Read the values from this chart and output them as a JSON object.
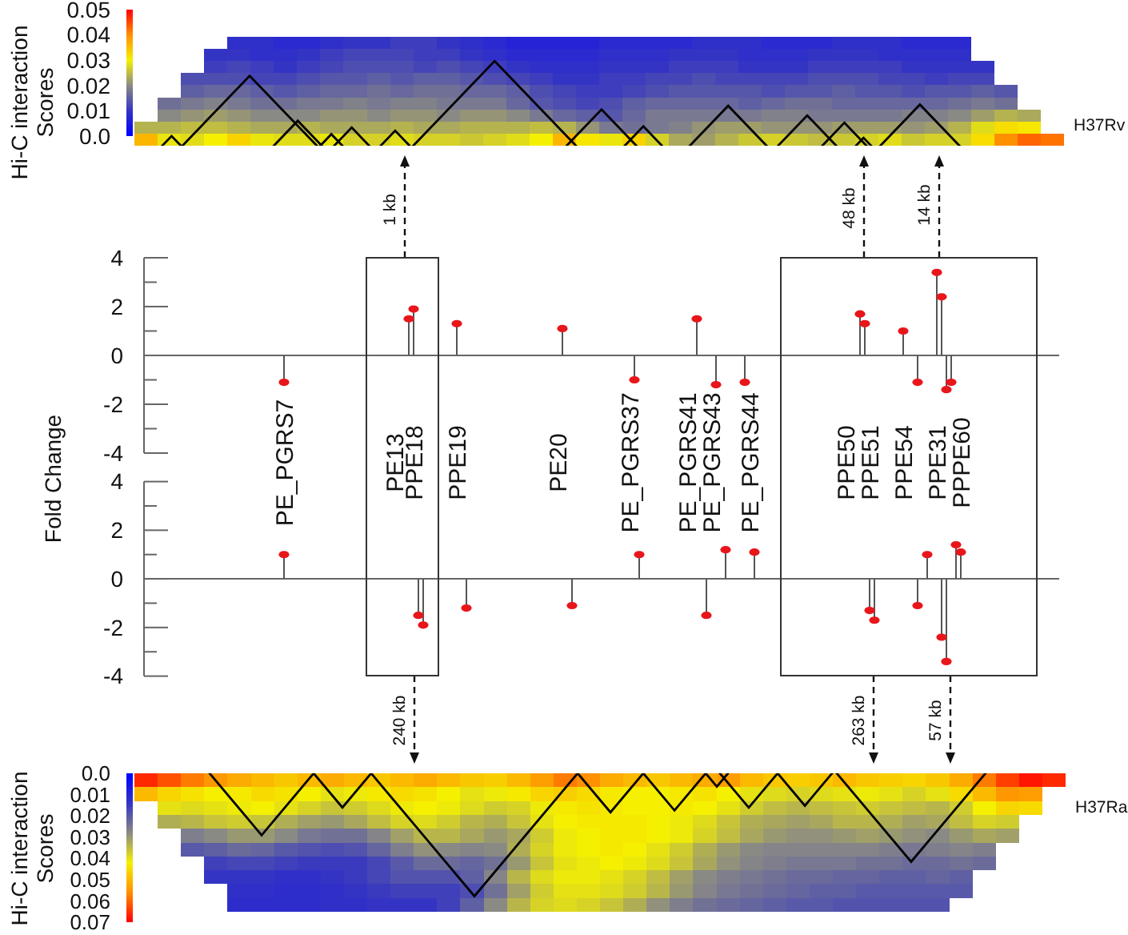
{
  "chart_data": [
    {
      "type": "heatmap",
      "clabel": "Hi-C interaction Scores",
      "clim": [
        0,
        0.05
      ],
      "cticks": [
        {
          "value": 0,
          "label": "0.0"
        },
        0.01,
        0.02,
        0.03,
        0.04,
        0.05
      ],
      "annotations": [
        "H37Rv"
      ],
      "categories": [
        null,
        null,
        null,
        null,
        null,
        null,
        null,
        null,
        null,
        null,
        null,
        null,
        null,
        null,
        null,
        null,
        null,
        null,
        null,
        null,
        null,
        null,
        null,
        null,
        null,
        null,
        null,
        null,
        null,
        null,
        null,
        null,
        null,
        null,
        null,
        null,
        null,
        null,
        null,
        null
      ],
      "y_categories": [
        null,
        null,
        null,
        null,
        null,
        null,
        null,
        null,
        null
      ],
      "cells": [
        [
          null,
          null,
          null,
          null,
          0.009,
          0.009,
          0.008,
          0.008,
          0.009,
          0.01,
          0.01,
          0.011,
          0.011,
          0.01,
          0.009,
          0.008,
          0.007,
          0.007,
          0.007,
          0.007,
          0.008,
          0.008,
          0.008,
          0.008,
          0.009,
          0.009,
          0.009,
          0.008,
          0.008,
          0.008,
          0.009,
          0.009,
          0.009,
          0.008,
          0.008,
          0.008,
          null,
          null,
          null,
          null
        ],
        [
          null,
          null,
          null,
          0.01,
          0.01,
          0.009,
          0.009,
          0.01,
          0.011,
          0.012,
          0.012,
          0.012,
          0.011,
          0.011,
          0.01,
          0.009,
          0.008,
          0.008,
          0.008,
          0.008,
          0.009,
          0.009,
          0.009,
          0.01,
          0.01,
          0.01,
          0.009,
          0.009,
          0.009,
          0.01,
          0.01,
          0.01,
          0.009,
          0.009,
          0.009,
          0.009,
          null,
          null,
          null,
          null
        ],
        [
          null,
          null,
          null,
          0.011,
          0.012,
          0.011,
          0.01,
          0.011,
          0.012,
          0.013,
          0.013,
          0.013,
          0.012,
          0.013,
          0.012,
          0.011,
          0.01,
          0.009,
          0.009,
          0.009,
          0.01,
          0.01,
          0.01,
          0.011,
          0.011,
          0.011,
          0.01,
          0.01,
          0.01,
          0.011,
          0.011,
          0.011,
          0.011,
          0.01,
          0.01,
          0.01,
          0.01,
          null,
          null,
          null
        ],
        [
          null,
          null,
          0.013,
          0.013,
          0.013,
          0.012,
          0.012,
          0.013,
          0.014,
          0.014,
          0.015,
          0.014,
          0.015,
          0.015,
          0.014,
          0.013,
          0.012,
          0.011,
          0.01,
          0.01,
          0.011,
          0.011,
          0.012,
          0.012,
          0.013,
          0.012,
          0.012,
          0.012,
          0.012,
          0.013,
          0.013,
          0.013,
          0.012,
          0.012,
          0.011,
          0.012,
          0.012,
          null,
          null,
          null
        ],
        [
          null,
          null,
          0.015,
          0.016,
          0.016,
          0.015,
          0.014,
          0.015,
          0.016,
          0.016,
          0.017,
          0.016,
          0.017,
          0.017,
          0.016,
          0.016,
          0.015,
          0.013,
          0.012,
          0.011,
          0.011,
          0.012,
          0.013,
          0.014,
          0.014,
          0.014,
          0.014,
          0.013,
          0.014,
          0.014,
          0.015,
          0.014,
          0.014,
          0.013,
          0.014,
          0.014,
          0.015,
          0.014,
          null,
          null
        ],
        [
          null,
          0.017,
          0.018,
          0.019,
          0.018,
          0.017,
          0.017,
          0.018,
          0.018,
          0.019,
          0.018,
          0.019,
          0.019,
          0.018,
          0.018,
          0.018,
          0.016,
          0.014,
          0.013,
          0.012,
          0.013,
          0.015,
          0.016,
          0.016,
          0.016,
          0.016,
          0.015,
          0.016,
          0.017,
          0.017,
          0.016,
          0.016,
          0.016,
          0.016,
          0.016,
          0.017,
          0.018,
          0.017,
          null,
          null
        ],
        [
          null,
          0.02,
          0.021,
          0.022,
          0.021,
          0.02,
          0.02,
          0.02,
          0.021,
          0.021,
          0.02,
          0.021,
          0.021,
          0.02,
          0.021,
          0.021,
          0.02,
          0.018,
          0.016,
          0.015,
          0.014,
          0.016,
          0.018,
          0.018,
          0.018,
          0.018,
          0.018,
          0.019,
          0.019,
          0.018,
          0.018,
          0.018,
          0.018,
          0.019,
          0.019,
          0.02,
          0.022,
          0.024,
          0.023,
          null
        ],
        [
          0.024,
          0.024,
          0.025,
          0.025,
          0.024,
          0.023,
          0.023,
          0.024,
          0.023,
          0.023,
          0.023,
          0.024,
          0.023,
          0.023,
          0.024,
          0.024,
          0.024,
          0.025,
          0.024,
          0.021,
          0.018,
          0.017,
          0.018,
          0.019,
          0.021,
          0.022,
          0.022,
          0.021,
          0.021,
          0.021,
          0.022,
          0.022,
          0.022,
          0.021,
          0.022,
          0.024,
          0.028,
          0.032,
          0.031,
          null
        ],
        [
          0.036,
          0.029,
          0.028,
          0.03,
          0.033,
          0.029,
          0.028,
          0.028,
          0.029,
          0.027,
          0.027,
          0.028,
          0.027,
          0.027,
          0.026,
          0.027,
          0.028,
          0.03,
          0.036,
          0.031,
          0.029,
          0.033,
          0.027,
          0.023,
          0.022,
          0.024,
          0.026,
          0.027,
          0.026,
          0.025,
          0.026,
          0.027,
          0.028,
          0.026,
          0.027,
          0.027,
          0.032,
          0.04,
          0.043,
          0.042
        ]
      ]
    },
    {
      "type": "lollipop",
      "ylabel": "Fold Change",
      "color": "#e8161b",
      "ylim": [
        -4,
        4
      ],
      "yticks": [
        -4,
        {
          "value": -3,
          "label": null
        },
        -2,
        {
          "value": -1,
          "label": null
        },
        0,
        {
          "value": 1,
          "label": null
        },
        2,
        {
          "value": 3,
          "label": null
        },
        4
      ],
      "annotations": [
        "1 kb",
        "48 kb",
        "14 kb"
      ],
      "categories": [
        null,
        null,
        null,
        null,
        null,
        null,
        null,
        null,
        null,
        null,
        null,
        null,
        null,
        null,
        null,
        null,
        null,
        null,
        null,
        null,
        null,
        null,
        null,
        null,
        null,
        null,
        null,
        null,
        "PE_PGRS7",
        null,
        null,
        null,
        null,
        null,
        null,
        null,
        null,
        null,
        null,
        null,
        null,
        null,
        null,
        null,
        null,
        null,
        null,
        null,
        null,
        null,
        null,
        "PE13",
        null,
        null,
        null,
        "PPE18",
        null,
        null,
        null,
        null,
        null,
        null,
        null,
        null,
        "PPE19",
        null,
        null,
        null,
        null,
        null,
        null,
        null,
        null,
        null,
        null,
        null,
        null,
        null,
        null,
        null,
        null,
        null,
        null,
        null,
        null,
        "PE20",
        null,
        null,
        null,
        null,
        null,
        null,
        null,
        null,
        null,
        null,
        null,
        null,
        null,
        null,
        "PE_PGRS37",
        null,
        null,
        null,
        null,
        null,
        null,
        null,
        null,
        null,
        null,
        null,
        "PE_PGRS41",
        null,
        null,
        null,
        null,
        "PE_PGRS43",
        null,
        null,
        null,
        null,
        null,
        null,
        null,
        "PE_PGRS44",
        null,
        null,
        null,
        null,
        null,
        null,
        null,
        null,
        null,
        null,
        null,
        null,
        null,
        null,
        null,
        null,
        null,
        null,
        null,
        "PPE50",
        null,
        null,
        null,
        null,
        "PPE51",
        null,
        null,
        null,
        null,
        null,
        null,
        "PPE54",
        null,
        null,
        null,
        null,
        null,
        null,
        "PPE31",
        null,
        null,
        null,
        null,
        "PPPE60",
        null,
        null,
        null,
        null,
        null,
        null,
        null,
        null,
        null,
        null,
        null,
        null,
        null,
        null,
        null,
        null,
        null,
        null,
        null,
        null
      ],
      "values": [
        null,
        null,
        null,
        null,
        null,
        null,
        null,
        null,
        null,
        null,
        null,
        null,
        null,
        null,
        null,
        null,
        null,
        null,
        null,
        null,
        null,
        null,
        null,
        null,
        null,
        null,
        null,
        null,
        -1.1,
        null,
        null,
        null,
        null,
        null,
        null,
        null,
        null,
        null,
        null,
        null,
        null,
        null,
        null,
        null,
        null,
        null,
        null,
        null,
        null,
        null,
        null,
        null,
        null,
        null,
        1.5,
        1.9,
        null,
        null,
        null,
        null,
        null,
        null,
        null,
        null,
        1.3,
        null,
        null,
        null,
        null,
        null,
        null,
        null,
        null,
        null,
        null,
        null,
        null,
        null,
        null,
        null,
        null,
        null,
        null,
        null,
        null,
        null,
        1.1,
        null,
        null,
        null,
        null,
        null,
        null,
        null,
        null,
        null,
        null,
        null,
        null,
        null,
        null,
        -1.0,
        null,
        null,
        null,
        null,
        null,
        null,
        null,
        null,
        null,
        null,
        null,
        null,
        1.5,
        null,
        null,
        null,
        -1.2,
        null,
        null,
        null,
        null,
        null,
        -1.1,
        null,
        null,
        null,
        null,
        null,
        null,
        null,
        null,
        null,
        null,
        null,
        null,
        null,
        null,
        null,
        null,
        null,
        null,
        null,
        null,
        null,
        null,
        null,
        1.7,
        1.3,
        null,
        null,
        null,
        null,
        null,
        null,
        null,
        1.0,
        null,
        null,
        -1.1,
        null,
        null,
        null,
        3.4,
        2.4,
        -1.4,
        -1.1,
        null,
        null,
        null,
        null,
        null,
        null,
        null,
        null,
        null,
        null,
        null,
        null,
        null,
        null,
        null,
        null,
        null,
        null,
        null,
        null,
        null,
        null
      ]
    },
    {
      "type": "lollipop",
      "color": "#e8161b",
      "ylim": [
        -4,
        4
      ],
      "yticks": [
        -4,
        {
          "value": -3,
          "label": null
        },
        -2,
        {
          "value": -1,
          "label": null
        },
        0,
        {
          "value": 1,
          "label": null
        },
        2,
        {
          "value": 3,
          "label": null
        },
        4
      ],
      "annotations": [
        "240 kb",
        "263 kb",
        "57 kb"
      ],
      "categories": [
        null,
        null,
        null,
        null,
        null,
        null,
        null,
        null,
        null,
        null,
        null,
        null,
        null,
        null,
        null,
        null,
        null,
        null,
        null,
        null,
        null,
        null,
        null,
        null,
        null,
        null,
        null,
        null,
        null,
        null,
        null,
        null,
        null,
        null,
        null,
        null,
        null,
        null,
        null,
        null,
        null,
        null,
        null,
        null,
        null,
        null,
        null,
        null,
        null,
        null,
        null,
        null,
        null,
        null,
        null,
        null,
        null,
        null,
        null,
        null,
        null,
        null,
        null,
        null,
        null,
        null,
        null,
        null,
        null,
        null,
        null,
        null,
        null,
        null,
        null,
        null,
        null,
        null,
        null,
        null,
        null,
        null,
        null,
        null,
        null,
        null,
        null,
        null,
        null,
        null,
        null,
        null,
        null,
        null,
        null,
        null,
        null,
        null,
        null,
        null,
        null,
        null,
        null,
        null,
        null,
        null,
        null,
        null,
        null,
        null,
        null,
        null,
        null,
        null,
        null,
        null,
        null,
        null,
        null,
        null,
        null,
        null,
        null,
        null,
        null,
        null,
        null,
        null,
        null,
        null,
        null,
        null,
        null,
        null,
        null,
        null,
        null,
        null,
        null,
        null,
        null,
        null,
        null,
        null,
        null,
        null,
        null,
        null,
        null,
        null,
        null,
        null,
        null,
        null,
        null,
        null,
        null,
        null,
        null,
        null,
        null,
        null,
        null,
        null,
        null,
        null,
        null,
        null,
        null,
        null,
        null,
        null,
        null,
        null,
        null,
        null,
        null,
        null,
        null,
        null,
        null,
        null,
        null,
        null,
        null,
        null,
        null,
        null,
        null,
        null
      ],
      "values": [
        null,
        null,
        null,
        null,
        null,
        null,
        null,
        null,
        null,
        null,
        null,
        null,
        null,
        null,
        null,
        null,
        null,
        null,
        null,
        null,
        null,
        null,
        null,
        null,
        null,
        null,
        null,
        null,
        1.0,
        null,
        null,
        null,
        null,
        null,
        null,
        null,
        null,
        null,
        null,
        null,
        null,
        null,
        null,
        null,
        null,
        null,
        null,
        null,
        null,
        null,
        null,
        null,
        null,
        null,
        null,
        null,
        -1.5,
        -1.9,
        null,
        null,
        null,
        null,
        null,
        null,
        null,
        null,
        -1.2,
        null,
        null,
        null,
        null,
        null,
        null,
        null,
        null,
        null,
        null,
        null,
        null,
        null,
        null,
        null,
        null,
        null,
        null,
        null,
        null,
        null,
        -1.1,
        null,
        null,
        null,
        null,
        null,
        null,
        null,
        null,
        null,
        null,
        null,
        null,
        null,
        1.0,
        null,
        null,
        null,
        null,
        null,
        null,
        null,
        null,
        null,
        null,
        null,
        null,
        null,
        -1.5,
        null,
        null,
        null,
        1.2,
        null,
        null,
        null,
        null,
        null,
        1.1,
        null,
        null,
        null,
        null,
        null,
        null,
        null,
        null,
        null,
        null,
        null,
        null,
        null,
        null,
        null,
        null,
        null,
        null,
        null,
        null,
        null,
        null,
        null,
        -1.3,
        -1.7,
        null,
        null,
        null,
        null,
        null,
        null,
        null,
        null,
        -1.1,
        null,
        1.0,
        null,
        null,
        -2.4,
        -3.4,
        null,
        1.4,
        1.1,
        null,
        null,
        null,
        null,
        null,
        null,
        null,
        null,
        null,
        null,
        null,
        null,
        null,
        null,
        null,
        null,
        null,
        null,
        null,
        null
      ]
    },
    {
      "type": "heatmap",
      "clabel": "Hi-C interaction Scores",
      "clim": [
        0.07,
        0
      ],
      "cticks": [
        {
          "value": 0,
          "label": "0.0"
        },
        0.01,
        0.02,
        0.03,
        0.04,
        0.05,
        0.06,
        0.07
      ],
      "annotations": [
        "H37Ra"
      ],
      "categories": [
        null,
        null,
        null,
        null,
        null,
        null,
        null,
        null,
        null,
        null,
        null,
        null,
        null,
        null,
        null,
        null,
        null,
        null,
        null,
        null,
        null,
        null,
        null,
        null,
        null,
        null,
        null,
        null,
        null,
        null,
        null,
        null,
        null,
        null,
        null,
        null,
        null,
        null,
        null,
        null
      ],
      "y_categories": [
        null,
        null,
        null,
        null,
        null,
        null,
        null,
        null,
        null,
        null
      ],
      "cells": [
        [
          0.066,
          0.062,
          0.058,
          0.055,
          0.052,
          0.05,
          0.048,
          0.05,
          0.052,
          0.05,
          0.048,
          0.05,
          0.052,
          0.05,
          0.048,
          0.047,
          0.05,
          0.054,
          0.058,
          0.056,
          0.052,
          0.05,
          0.048,
          0.05,
          0.052,
          0.054,
          0.05,
          0.048,
          0.047,
          0.048,
          0.05,
          0.048,
          0.047,
          0.046,
          0.048,
          0.052,
          0.058,
          0.064,
          0.068,
          0.066
        ],
        [
          0.05,
          0.046,
          0.044,
          0.042,
          0.043,
          0.045,
          0.044,
          0.042,
          0.04,
          0.041,
          0.043,
          0.045,
          0.044,
          0.042,
          0.04,
          0.041,
          0.043,
          0.046,
          0.047,
          0.045,
          0.043,
          0.042,
          0.042,
          0.043,
          0.044,
          0.042,
          0.04,
          0.039,
          0.038,
          0.039,
          0.04,
          0.041,
          0.04,
          0.038,
          0.04,
          0.045,
          0.05,
          0.055,
          0.054,
          null
        ],
        [
          null,
          0.04,
          0.039,
          0.04,
          0.041,
          0.042,
          0.04,
          0.038,
          0.036,
          0.037,
          0.039,
          0.041,
          0.042,
          0.041,
          0.039,
          0.037,
          0.038,
          0.041,
          0.043,
          0.044,
          0.043,
          0.042,
          0.042,
          0.043,
          0.042,
          0.04,
          0.037,
          0.035,
          0.034,
          0.035,
          0.036,
          0.037,
          0.036,
          0.035,
          0.034,
          0.037,
          0.042,
          0.046,
          0.045,
          null
        ],
        [
          null,
          0.033,
          0.034,
          0.036,
          0.037,
          0.036,
          0.033,
          0.031,
          0.03,
          0.032,
          0.035,
          0.038,
          0.039,
          0.037,
          0.034,
          0.033,
          0.036,
          0.04,
          0.042,
          0.043,
          0.043,
          0.043,
          0.042,
          0.041,
          0.039,
          0.036,
          0.033,
          0.032,
          0.031,
          0.032,
          0.034,
          0.034,
          0.033,
          0.031,
          0.032,
          0.035,
          0.038,
          0.037,
          null,
          null
        ],
        [
          null,
          null,
          0.026,
          0.028,
          0.03,
          0.03,
          0.028,
          0.025,
          0.024,
          0.024,
          0.027,
          0.031,
          0.034,
          0.034,
          0.032,
          0.03,
          0.032,
          0.037,
          0.041,
          0.042,
          0.043,
          0.043,
          0.042,
          0.041,
          0.038,
          0.035,
          0.032,
          0.03,
          0.029,
          0.029,
          0.03,
          0.031,
          0.03,
          0.029,
          0.028,
          0.03,
          0.032,
          0.031,
          null,
          null
        ],
        [
          null,
          null,
          0.02,
          0.021,
          0.023,
          0.022,
          0.02,
          0.019,
          0.018,
          0.019,
          0.022,
          0.026,
          0.029,
          0.028,
          0.027,
          0.028,
          0.033,
          0.038,
          0.041,
          0.042,
          0.043,
          0.042,
          0.04,
          0.037,
          0.033,
          0.03,
          0.028,
          0.027,
          0.027,
          0.027,
          0.027,
          0.027,
          0.026,
          0.025,
          0.026,
          0.027,
          0.026,
          null,
          null,
          null
        ],
        [
          null,
          null,
          null,
          0.016,
          0.017,
          0.017,
          0.016,
          0.015,
          0.015,
          0.015,
          0.017,
          0.02,
          0.023,
          0.023,
          0.022,
          0.024,
          0.03,
          0.036,
          0.04,
          0.041,
          0.042,
          0.041,
          0.039,
          0.036,
          0.032,
          0.029,
          0.027,
          0.026,
          0.025,
          0.025,
          0.025,
          0.024,
          0.024,
          0.023,
          0.023,
          0.024,
          0.023,
          null,
          null,
          null
        ],
        [
          null,
          null,
          null,
          0.014,
          0.014,
          0.014,
          0.013,
          0.013,
          0.014,
          0.015,
          0.017,
          0.019,
          0.019,
          0.019,
          0.021,
          0.027,
          0.034,
          0.039,
          0.041,
          0.041,
          0.04,
          0.038,
          0.035,
          0.031,
          0.028,
          0.026,
          0.025,
          0.024,
          0.023,
          0.023,
          0.022,
          0.022,
          0.021,
          0.021,
          0.022,
          0.021,
          null,
          null,
          null,
          null
        ],
        [
          null,
          null,
          null,
          null,
          0.013,
          0.013,
          0.012,
          0.012,
          0.013,
          0.014,
          0.015,
          0.016,
          0.016,
          0.016,
          0.018,
          0.024,
          0.031,
          0.037,
          0.04,
          0.04,
          0.039,
          0.037,
          0.034,
          0.03,
          0.027,
          0.025,
          0.024,
          0.023,
          0.022,
          0.021,
          0.021,
          0.02,
          0.02,
          0.02,
          0.02,
          0.02,
          null,
          null,
          null,
          null
        ],
        [
          null,
          null,
          null,
          null,
          0.012,
          0.012,
          0.012,
          0.012,
          0.013,
          0.013,
          0.014,
          0.014,
          0.014,
          0.016,
          0.021,
          0.028,
          0.034,
          0.038,
          0.039,
          0.038,
          0.036,
          0.033,
          0.029,
          0.026,
          0.024,
          0.023,
          0.022,
          0.021,
          0.02,
          0.02,
          0.019,
          0.019,
          0.019,
          0.019,
          0.019,
          null,
          null,
          null,
          null,
          null
        ]
      ]
    }
  ]
}
